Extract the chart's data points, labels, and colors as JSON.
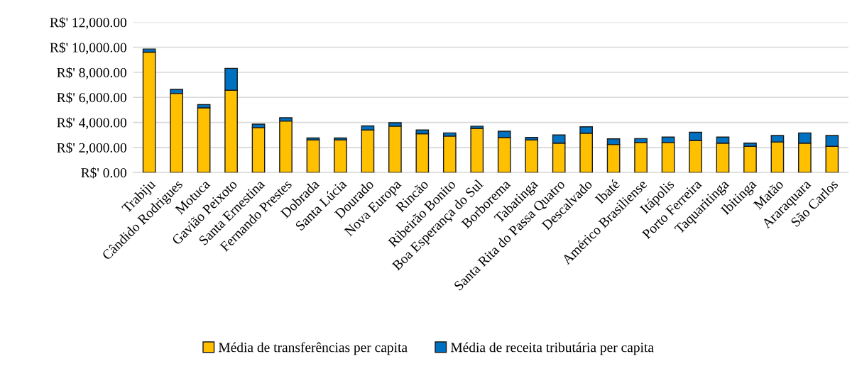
{
  "chart_data": {
    "type": "bar",
    "stacked": true,
    "categories": [
      "Trabiju",
      "Cândido Rodrigues",
      "Motuca",
      "Gavião Peixoto",
      "Santa Ernestina",
      "Fernando Prestes",
      "Dobrada",
      "Santa Lúcia",
      "Dourado",
      "Nova Europa",
      "Rincão",
      "Ribeirão Bonito",
      "Boa Esperança do Sul",
      "Borborema",
      "Tabatinga",
      "Santa Rita do Passa Quatro",
      "Descalvado",
      "Ibaté",
      "Américo Brasiliense",
      "Itápolis",
      "Porto Ferreira",
      "Taquaritinga",
      "Ibitinga",
      "Matão",
      "Araraquara",
      "São Carlos"
    ],
    "series": [
      {
        "name": "Média de transferências per capita",
        "color": "#ffc000",
        "values": [
          9610,
          6320,
          5170,
          6570,
          3590,
          4110,
          2600,
          2600,
          3400,
          3700,
          3100,
          2910,
          3520,
          2800,
          2600,
          2350,
          3140,
          2240,
          2400,
          2400,
          2560,
          2350,
          2090,
          2440,
          2350,
          2090
        ]
      },
      {
        "name": "Média de receita tributária per capita",
        "color": "#0070c0",
        "values": [
          250,
          320,
          260,
          1750,
          270,
          260,
          160,
          160,
          320,
          280,
          300,
          250,
          180,
          500,
          200,
          650,
          510,
          450,
          310,
          430,
          650,
          480,
          260,
          520,
          810,
          870
        ]
      }
    ],
    "ylim": [
      0,
      12000
    ],
    "yticks": [
      {
        "value": 0,
        "label": "R$' 0.00"
      },
      {
        "value": 2000,
        "label": "R$' 2,000.00"
      },
      {
        "value": 4000,
        "label": "R$' 4,000.00"
      },
      {
        "value": 6000,
        "label": "R$' 6,000.00"
      },
      {
        "value": 8000,
        "label": "R$' 8,000.00"
      },
      {
        "value": 10000,
        "label": "R$' 10,000.00"
      },
      {
        "value": 12000,
        "label": "R$' 12,000.00"
      }
    ],
    "grid": "y",
    "legend": "bottom"
  }
}
